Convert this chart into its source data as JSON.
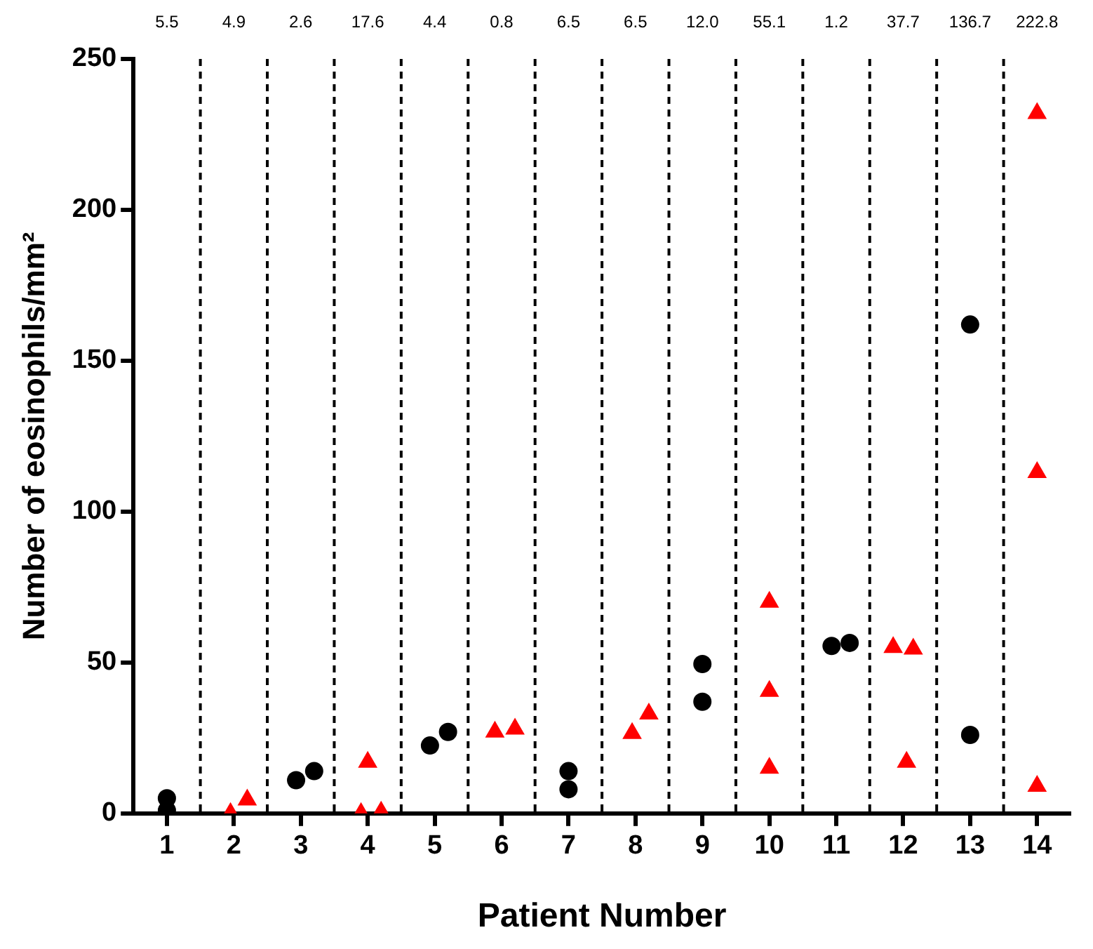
{
  "chart_data": {
    "type": "scatter",
    "xlabel": "Patient Number",
    "ylabel": "Number of eosinophils/mm²",
    "xlim": [
      0.5,
      14.5
    ],
    "xticks": [
      1,
      2,
      3,
      4,
      5,
      6,
      7,
      8,
      9,
      10,
      11,
      12,
      13,
      14
    ],
    "ylim": [
      0,
      250
    ],
    "yticks": [
      0,
      50,
      100,
      150,
      200,
      250
    ],
    "grid": false,
    "legend": false,
    "series": [
      {
        "color": "#000000",
        "marker": "circle",
        "x": [
          1,
          1,
          2.93,
          3.2,
          4.93,
          5.2,
          7,
          7,
          9,
          9,
          10.93,
          11.2,
          13,
          13
        ],
        "values": [
          5,
          1,
          11,
          14,
          22.5,
          27,
          14,
          8,
          49.5,
          37,
          55.5,
          56.5,
          162,
          26
        ]
      },
      {
        "color": "#ff0000",
        "marker": "triangle",
        "x": [
          1.95,
          2.2,
          4,
          3.9,
          4.2,
          5.9,
          6.2,
          7.95,
          8.2,
          10,
          10,
          10,
          11.85,
          12.15,
          12.05,
          14,
          14,
          14
        ],
        "values": [
          0,
          4.5,
          17,
          0,
          0.5,
          27,
          28,
          26.5,
          33,
          70,
          40.5,
          15,
          55,
          54.5,
          17,
          232,
          113,
          9
        ]
      }
    ],
    "ref_lines": [
      {
        "axis": "x",
        "value": 1.5,
        "color": "#000000",
        "line_style": "dashed"
      },
      {
        "axis": "x",
        "value": 2.5,
        "color": "#000000",
        "line_style": "dashed"
      },
      {
        "axis": "x",
        "value": 3.5,
        "color": "#000000",
        "line_style": "dashed"
      },
      {
        "axis": "x",
        "value": 4.5,
        "color": "#000000",
        "line_style": "dashed"
      },
      {
        "axis": "x",
        "value": 5.5,
        "color": "#000000",
        "line_style": "dashed"
      },
      {
        "axis": "x",
        "value": 6.5,
        "color": "#000000",
        "line_style": "dashed"
      },
      {
        "axis": "x",
        "value": 7.5,
        "color": "#000000",
        "line_style": "dashed"
      },
      {
        "axis": "x",
        "value": 8.5,
        "color": "#000000",
        "line_style": "dashed"
      },
      {
        "axis": "x",
        "value": 9.5,
        "color": "#000000",
        "line_style": "dashed"
      },
      {
        "axis": "x",
        "value": 10.5,
        "color": "#000000",
        "line_style": "dashed"
      },
      {
        "axis": "x",
        "value": 11.5,
        "color": "#000000",
        "line_style": "dashed"
      },
      {
        "axis": "x",
        "value": 12.5,
        "color": "#000000",
        "line_style": "dashed"
      },
      {
        "axis": "x",
        "value": 13.5,
        "color": "#000000",
        "line_style": "dashed"
      }
    ],
    "annotations": [
      "5.5",
      "4.9",
      "2.6",
      "17.6",
      "4.4",
      "0.8",
      "6.5",
      "6.5",
      "12.0",
      "55.1",
      "1.2",
      "37.7",
      "136.7",
      "222.8"
    ]
  }
}
